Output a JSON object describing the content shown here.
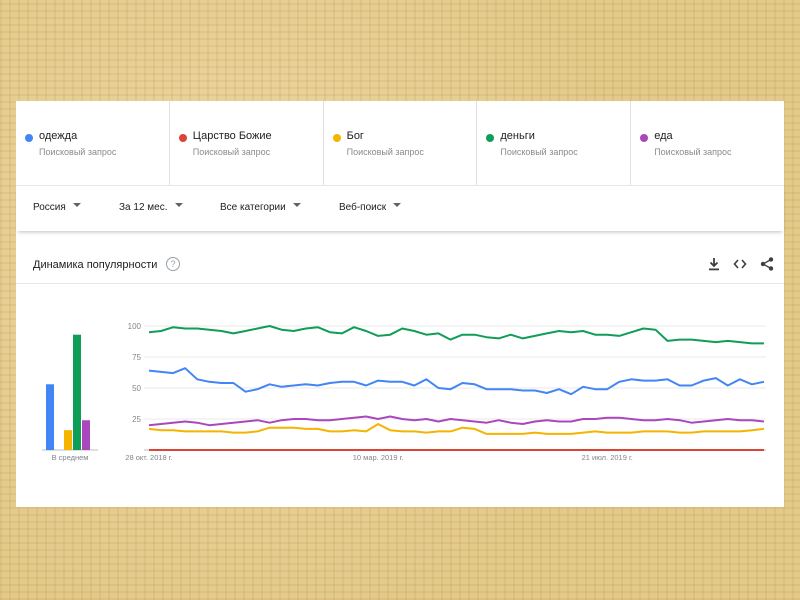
{
  "terms": [
    {
      "label": "одежда",
      "sublabel": "Поисковый запрос",
      "color": "#4285f4"
    },
    {
      "label": "Царство Божие",
      "sublabel": "Поисковый запрос",
      "color": "#db4437"
    },
    {
      "label": "Бог",
      "sublabel": "Поисковый запрос",
      "color": "#f4b400"
    },
    {
      "label": "деньги",
      "sublabel": "Поисковый запрос",
      "color": "#0f9d58"
    },
    {
      "label": "еда",
      "sublabel": "Поисковый запрос",
      "color": "#ab47bc"
    }
  ],
  "filters": {
    "region": "Россия",
    "period": "За 12 мес.",
    "category": "Все категории",
    "search_type": "Веб-поиск"
  },
  "chart_header": {
    "title": "Динамика популярности",
    "help_icon": "?",
    "icons": [
      "download-icon",
      "embed-icon",
      "share-icon"
    ]
  },
  "chart_data": {
    "type": "line",
    "ylim": [
      0,
      100
    ],
    "y_ticks": [
      25,
      50,
      75,
      100
    ],
    "x_ticks": [
      {
        "index": 0,
        "label": "28 окт. 2018 г."
      },
      {
        "index": 19,
        "label": "10 мар. 2019 г."
      },
      {
        "index": 38,
        "label": "21 июл. 2019 г."
      }
    ],
    "average": {
      "label": "В среднем",
      "values": [
        {
          "term": "одежда",
          "value": 53,
          "color": "#4285f4"
        },
        {
          "term": "Царство Божие",
          "value": 0,
          "color": "#db4437"
        },
        {
          "term": "Бог",
          "value": 16,
          "color": "#f4b400"
        },
        {
          "term": "деньги",
          "value": 93,
          "color": "#0f9d58"
        },
        {
          "term": "еда",
          "value": 24,
          "color": "#ab47bc"
        }
      ]
    },
    "series": [
      {
        "name": "одежда",
        "color": "#4285f4",
        "values": [
          64,
          63,
          62,
          66,
          57,
          55,
          54,
          54,
          47,
          49,
          53,
          51,
          52,
          53,
          52,
          54,
          55,
          55,
          52,
          56,
          55,
          55,
          52,
          57,
          50,
          49,
          54,
          53,
          49,
          49,
          49,
          48,
          48,
          46,
          49,
          45,
          51,
          49,
          49,
          55,
          57,
          56,
          56,
          57,
          52,
          52,
          56,
          58,
          52,
          57,
          53,
          55
        ]
      },
      {
        "name": "Царство Божие",
        "color": "#db4437",
        "values": [
          0,
          0,
          0,
          0,
          0,
          0,
          0,
          0,
          0,
          0,
          0,
          0,
          0,
          0,
          0,
          0,
          0,
          0,
          0,
          0,
          0,
          0,
          0,
          0,
          0,
          0,
          0,
          0,
          0,
          0,
          0,
          0,
          0,
          0,
          0,
          0,
          0,
          0,
          0,
          0,
          0,
          0,
          0,
          0,
          0,
          0,
          0,
          0,
          0,
          0,
          0,
          0
        ]
      },
      {
        "name": "Бог",
        "color": "#f4b400",
        "values": [
          17,
          16,
          16,
          15,
          15,
          15,
          15,
          14,
          14,
          15,
          18,
          18,
          18,
          17,
          17,
          15,
          15,
          16,
          15,
          21,
          16,
          15,
          15,
          14,
          15,
          15,
          18,
          17,
          13,
          13,
          13,
          13,
          14,
          13,
          13,
          13,
          14,
          15,
          14,
          14,
          14,
          15,
          15,
          15,
          14,
          14,
          15,
          15,
          15,
          15,
          16,
          17
        ]
      },
      {
        "name": "деньги",
        "color": "#0f9d58",
        "values": [
          95,
          96,
          99,
          98,
          98,
          97,
          96,
          94,
          96,
          98,
          100,
          97,
          96,
          98,
          99,
          95,
          94,
          99,
          96,
          92,
          93,
          98,
          96,
          93,
          94,
          89,
          93,
          93,
          91,
          90,
          93,
          90,
          92,
          94,
          96,
          95,
          96,
          93,
          93,
          92,
          95,
          98,
          97,
          88,
          89,
          89,
          88,
          87,
          88,
          87,
          86,
          86
        ]
      },
      {
        "name": "еда",
        "color": "#ab47bc",
        "values": [
          20,
          21,
          22,
          23,
          22,
          20,
          21,
          22,
          23,
          24,
          22,
          24,
          25,
          25,
          24,
          24,
          25,
          26,
          27,
          25,
          27,
          25,
          24,
          25,
          23,
          25,
          24,
          23,
          22,
          24,
          22,
          21,
          23,
          24,
          23,
          23,
          25,
          25,
          26,
          26,
          25,
          24,
          24,
          25,
          24,
          22,
          23,
          24,
          25,
          24,
          24,
          23
        ]
      }
    ]
  }
}
